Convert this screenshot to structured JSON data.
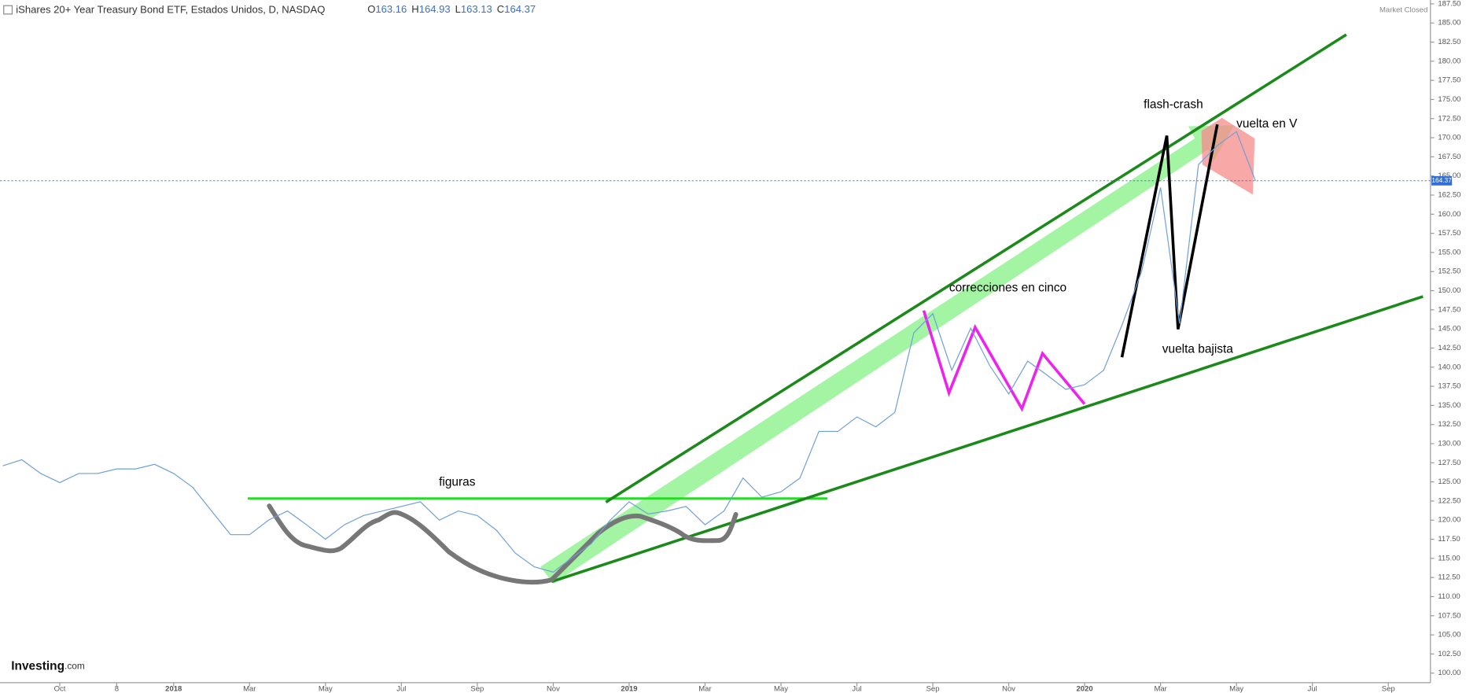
{
  "chart_data": {
    "type": "line",
    "title": "iShares 20+ Year Treasury Bond ETF, Estados Unidos, D, NASDAQ",
    "ohlc": [
      {
        "name": "O",
        "value": 163.16
      },
      {
        "name": "H",
        "value": 164.93
      },
      {
        "name": "L",
        "value": 163.13
      },
      {
        "name": "C",
        "value": 164.37
      }
    ],
    "status": "Market Closed",
    "brand": "Investing",
    "brand_suffix": ".com",
    "last_price": 164.37,
    "annotations": [
      "figuras",
      "correcciones en cinco",
      "flash-crash",
      "vuelta en V",
      "vuelta bajista"
    ],
    "categories": [
      null,
      null,
      null,
      "Oct",
      null,
      null,
      "8",
      null,
      null,
      "2018",
      null,
      null,
      null,
      "Mar",
      null,
      null,
      null,
      "May",
      null,
      null,
      null,
      "Jul",
      null,
      null,
      null,
      "Sep",
      null,
      null,
      null,
      "Nov",
      null,
      null,
      null,
      "2019",
      null,
      null,
      null,
      "Mar",
      null,
      null,
      null,
      "May",
      null,
      null,
      null,
      "Jul",
      null,
      null,
      null,
      "Sep",
      null,
      null,
      null,
      "Nov",
      null,
      null,
      null,
      "2020",
      null,
      null,
      null,
      "Mar",
      null,
      null,
      null,
      "May",
      null,
      null,
      null,
      "Jul",
      null,
      null,
      null,
      "Sep",
      null,
      null
    ],
    "series": [
      {
        "name": "iShares 20+ Year Treasury Bond ETF",
        "color": "#6f9fd8",
        "values": [
          127.1,
          127.9,
          126.1,
          124.9,
          126.1,
          126.1,
          126.7,
          126.7,
          127.3,
          126.1,
          124.3,
          121.2,
          118.1,
          118.1,
          120.0,
          121.2,
          119.4,
          117.5,
          119.4,
          120.6,
          121.2,
          121.8,
          122.4,
          120.0,
          121.2,
          120.6,
          118.7,
          115.7,
          113.9,
          113.2,
          115.1,
          116.9,
          120.0,
          122.4,
          120.8,
          121.2,
          121.8,
          119.4,
          121.2,
          125.5,
          123.0,
          123.7,
          125.5,
          131.6,
          131.6,
          133.5,
          132.2,
          134.1,
          144.5,
          147.0,
          139.6,
          145.1,
          140.2,
          136.5,
          140.8,
          139.0,
          137.1,
          137.7,
          139.6,
          145.7,
          152.5,
          163.5,
          145.7,
          166.5,
          169.0,
          170.8,
          164.37,
          null,
          null,
          null,
          null,
          null,
          null,
          null,
          null,
          null
        ]
      }
    ],
    "ylim": [
      98.75,
      188
    ],
    "yticks": [
      {
        "value": 100,
        "label": "100.00"
      },
      {
        "value": 102.5,
        "label": "102.50"
      },
      {
        "value": 105,
        "label": "105.00"
      },
      {
        "value": 107.5,
        "label": "107.50"
      },
      {
        "value": 110,
        "label": "110.00"
      },
      {
        "value": 112.5,
        "label": "112.50"
      },
      {
        "value": 115,
        "label": "115.00"
      },
      {
        "value": 117.5,
        "label": "117.50"
      },
      {
        "value": 120,
        "label": "120.00"
      },
      {
        "value": 122.5,
        "label": "122.50"
      },
      {
        "value": 125,
        "label": "125.00"
      },
      {
        "value": 127.5,
        "label": "127.50"
      },
      {
        "value": 130,
        "label": "130.00"
      },
      {
        "value": 132.5,
        "label": "132.50"
      },
      {
        "value": 135,
        "label": "135.00"
      },
      {
        "value": 137.5,
        "label": "137.50"
      },
      {
        "value": 140,
        "label": "140.00"
      },
      {
        "value": 142.5,
        "label": "142.50"
      },
      {
        "value": 145,
        "label": "145.00"
      },
      {
        "value": 147.5,
        "label": "147.50"
      },
      {
        "value": 150,
        "label": "150.00"
      },
      {
        "value": 152.5,
        "label": "152.50"
      },
      {
        "value": 155,
        "label": "155.00"
      },
      {
        "value": 157.5,
        "label": "157.50"
      },
      {
        "value": 160,
        "label": "160.00"
      },
      {
        "value": 162.5,
        "label": "162.50"
      },
      {
        "value": 165,
        "label": "165.00"
      },
      {
        "value": 167.5,
        "label": "167.50"
      },
      {
        "value": 170,
        "label": "170.00"
      },
      {
        "value": 172.5,
        "label": "172.50"
      },
      {
        "value": 175,
        "label": "175.00"
      },
      {
        "value": 177.5,
        "label": "177.50"
      },
      {
        "value": 180,
        "label": "180.00"
      },
      {
        "value": 182.5,
        "label": "182.50"
      },
      {
        "value": 185,
        "label": "185.00"
      },
      {
        "value": 187.5,
        "label": "187.50"
      }
    ],
    "grid": false
  }
}
